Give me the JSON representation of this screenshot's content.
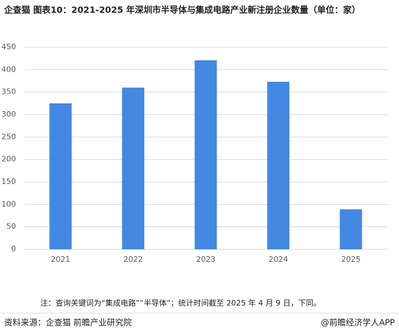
{
  "chart_data": {
    "type": "bar",
    "title": "企查猫  图表10：2021-2025 年深圳市半导体与集成电路产业新注册企业数量（单位：家）",
    "categories": [
      "2021",
      "2022",
      "2023",
      "2024",
      "2025"
    ],
    "values": [
      325,
      360,
      421,
      373,
      89
    ],
    "color": "#4388e3",
    "ylim": [
      0,
      450
    ],
    "yticks": [
      0,
      50,
      100,
      150,
      200,
      250,
      300,
      350,
      400,
      450
    ],
    "grid": true,
    "note": "注：查询关键词为“集成电路”“半导体”；统计时间截至 2025 年 4 月 9 日，下同。",
    "source": "资料来源：企查猫 前瞻产业研究院",
    "credit": "@前瞻经济学人APP"
  }
}
